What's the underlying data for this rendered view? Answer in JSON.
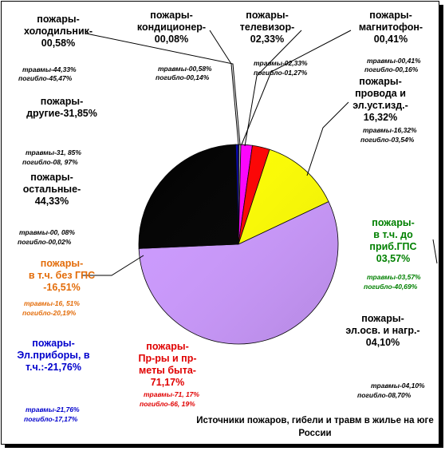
{
  "chart_data": {
    "type": "pie",
    "title": "Источники пожаров, гибели и травм в жилье на юге России",
    "slices": [
      {
        "key": "kond",
        "value": 0.08,
        "color": "#2a3a8c"
      },
      {
        "key": "magn",
        "value": 0.41,
        "color": "#aaaaaa"
      },
      {
        "key": "tv",
        "value": 2.33,
        "color": "#ff00ff"
      },
      {
        "key": "gps",
        "value": 3.57,
        "color": "#ff0000"
      },
      {
        "key": "prov",
        "value": 16.32,
        "color": "#ffff00"
      },
      {
        "key": "pr",
        "value": 71.17,
        "color": "#cc99ff"
      },
      {
        "key": "other",
        "value": 31.85,
        "color": "#000000"
      },
      {
        "key": "hol",
        "value": 0.58,
        "color": "#0000aa"
      }
    ],
    "labels": {
      "hol": {
        "lines": [
          "пожары-",
          "холодильник-",
          "00,58%"
        ],
        "inj": "травмы-44,33%",
        "death": "погибло-45,47%"
      },
      "kond": {
        "lines": [
          "пожары-",
          "кондиционер-",
          "00,08%"
        ],
        "inj": "травмы-00,58%",
        "death": "погибло-00,14%"
      },
      "tv": {
        "lines": [
          "пожары-",
          "телевизор-",
          "02,33%"
        ],
        "inj": "травмы-02,33%",
        "death": "погибло-01,27%"
      },
      "magn": {
        "lines": [
          "пожары-",
          "магнитофон-",
          "00,41%"
        ],
        "inj": "травмы-00,41%",
        "death": "погибло-00,16%"
      },
      "prov": {
        "lines": [
          "пожары-",
          "провода и",
          "эл.уст.изд.-",
          "16,32%"
        ],
        "inj": "травмы-16,32%",
        "death": "погибло-03,54%"
      },
      "other": {
        "lines": [
          "пожары-",
          "другие-31,85%"
        ],
        "inj": "травмы-31, 85%",
        "death": "погибло-08, 97%"
      },
      "rest": {
        "lines": [
          "пожары-",
          "остальные-",
          "44,33%"
        ],
        "inj": "травмы-00, 08%",
        "death": "погибло-00,02%"
      },
      "gps": {
        "lines": [
          "пожары-",
          "в т.ч. до",
          "приб.ГПС",
          "03,57%"
        ],
        "inj": "травмы-03,57%",
        "death": "погибло-40,69%"
      },
      "nogps": {
        "lines": [
          "пожары-",
          "в т.ч. без ГПС",
          "-16,51%"
        ],
        "inj": "травмы-16, 51%",
        "death": "погибло-20,19%"
      },
      "elosv": {
        "lines": [
          "пожары-",
          "эл.осв. и нагр.-",
          "04,10%"
        ],
        "inj": "травмы-04,10%",
        "death": "погибло-08,70%"
      },
      "pr": {
        "lines": [
          "пожары-",
          "Пр-ры и пр-",
          "меты быта-",
          "71,17%"
        ],
        "inj": "травмы-71, 17%",
        "death": "погибло-66, 19%"
      },
      "elpr": {
        "lines": [
          "пожары-",
          "Эл.приборы, в",
          "т.ч.:-21,76%"
        ],
        "inj": "травмы-21,76%",
        "death": "погибло-17,17%"
      }
    }
  }
}
